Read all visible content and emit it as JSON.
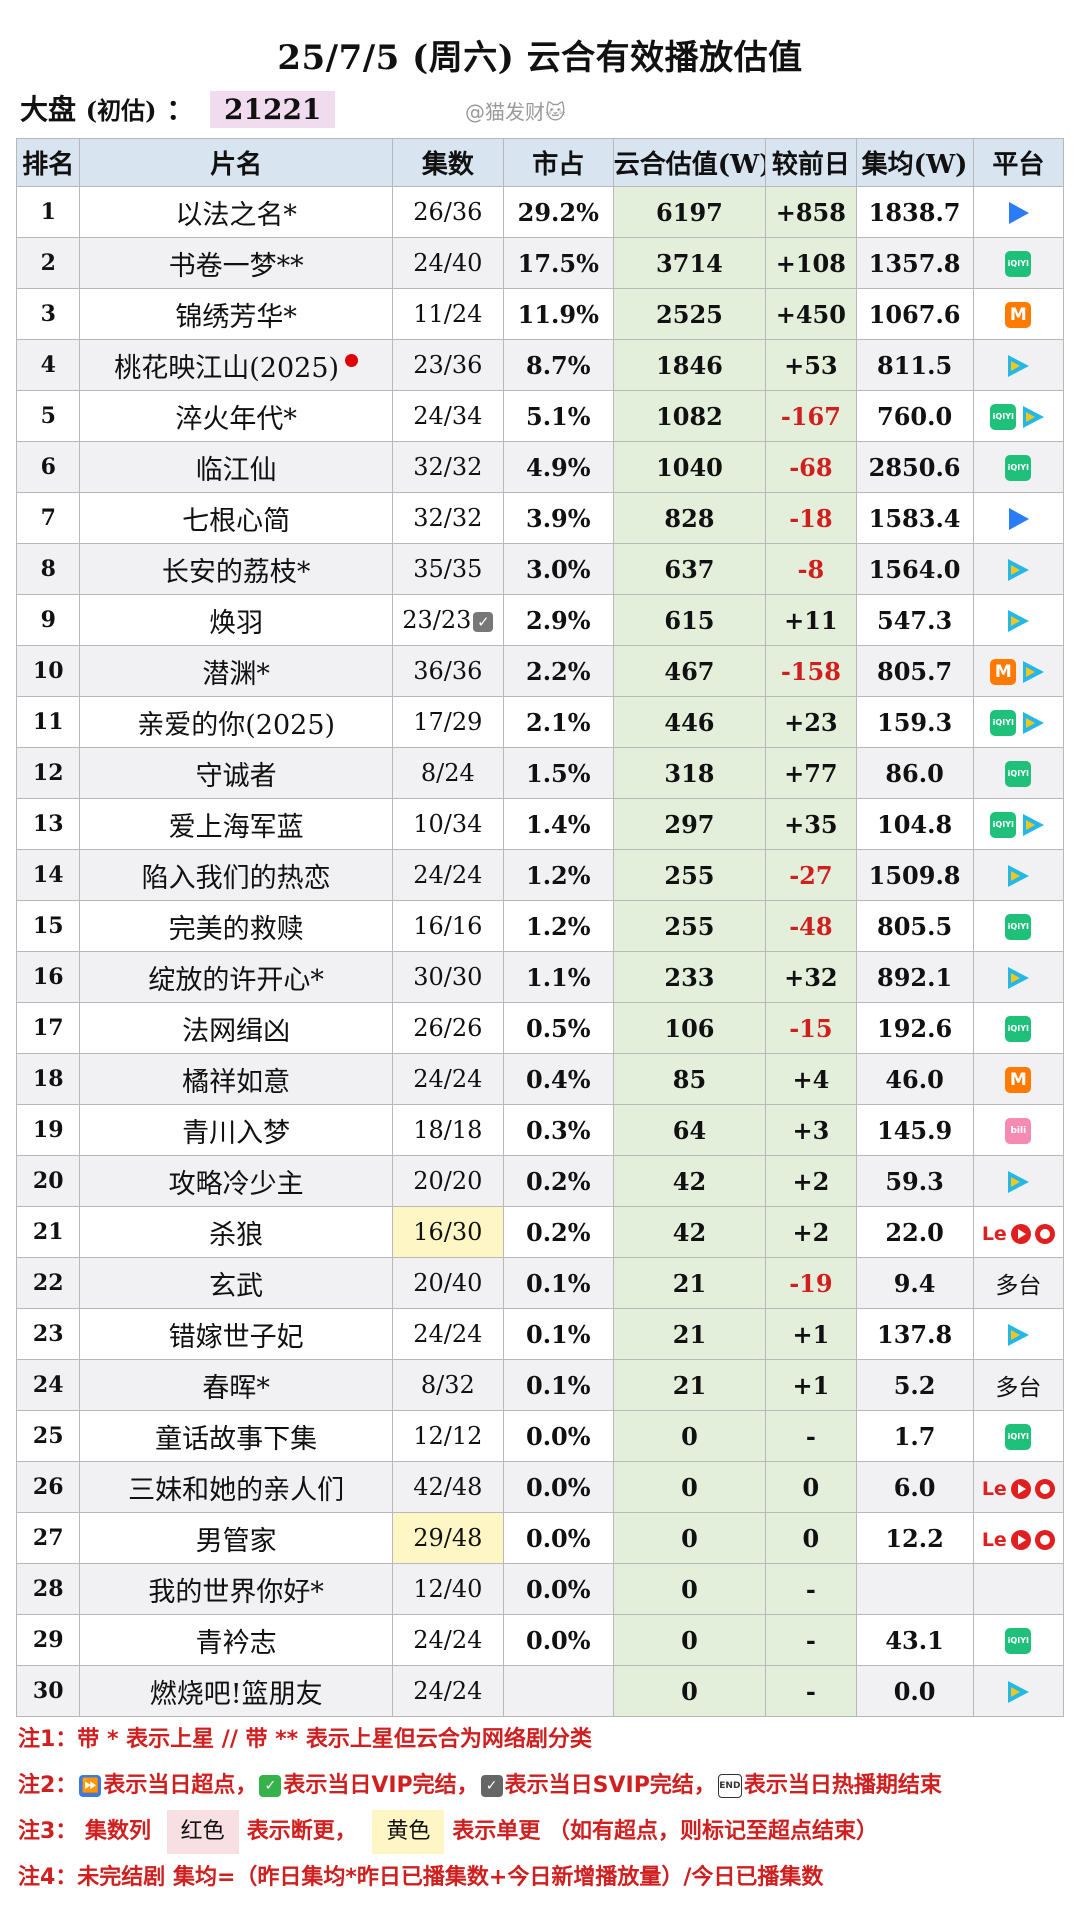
{
  "title": "25/7/5 (周六) 云合有效播放估值",
  "dapan": {
    "label": "大盘",
    "sub": "(初估)",
    "colon": "：",
    "value": "21221"
  },
  "watermark": "@猫发财🐱",
  "headers": [
    "排名",
    "片名",
    "集数",
    "市占",
    "云合估值(W)",
    "较前日",
    "集均(W)",
    "平台"
  ],
  "rows": [
    {
      "rank": "1",
      "name": "以法之名*",
      "ep": "26/36",
      "share": "29.2%",
      "est": "6197",
      "diff": "+858",
      "avg": "1838.7",
      "platforms": [
        "youku"
      ]
    },
    {
      "rank": "2",
      "name": "书卷一梦**",
      "ep": "24/40",
      "share": "17.5%",
      "est": "3714",
      "diff": "+108",
      "avg": "1357.8",
      "platforms": [
        "iqiyi"
      ]
    },
    {
      "rank": "3",
      "name": "锦绣芳华*",
      "ep": "11/24",
      "share": "11.9%",
      "est": "2525",
      "diff": "+450",
      "avg": "1067.6",
      "platforms": [
        "mango"
      ]
    },
    {
      "rank": "4",
      "name": "桃花映江山(2025)",
      "ep": "23/36",
      "share": "8.7%",
      "est": "1846",
      "diff": "+53",
      "avg": "811.5",
      "platforms": [
        "tencent"
      ],
      "dot": true
    },
    {
      "rank": "5",
      "name": "淬火年代*",
      "ep": "24/34",
      "share": "5.1%",
      "est": "1082",
      "diff": "-167",
      "avg": "760.0",
      "platforms": [
        "iqiyi",
        "tencent"
      ]
    },
    {
      "rank": "6",
      "name": "临江仙",
      "ep": "32/32",
      "share": "4.9%",
      "est": "1040",
      "diff": "-68",
      "avg": "2850.6",
      "platforms": [
        "iqiyi"
      ]
    },
    {
      "rank": "7",
      "name": "七根心简",
      "ep": "32/32",
      "share": "3.9%",
      "est": "828",
      "diff": "-18",
      "avg": "1583.4",
      "platforms": [
        "youku"
      ]
    },
    {
      "rank": "8",
      "name": "长安的荔枝*",
      "ep": "35/35",
      "share": "3.0%",
      "est": "637",
      "diff": "-8",
      "avg": "1564.0",
      "platforms": [
        "tencent"
      ]
    },
    {
      "rank": "9",
      "name": "焕羽",
      "ep": "23/23",
      "share": "2.9%",
      "est": "615",
      "diff": "+11",
      "avg": "547.3",
      "platforms": [
        "tencent"
      ],
      "check": true
    },
    {
      "rank": "10",
      "name": "潜渊*",
      "ep": "36/36",
      "share": "2.2%",
      "est": "467",
      "diff": "-158",
      "avg": "805.7",
      "platforms": [
        "mango",
        "tencent"
      ]
    },
    {
      "rank": "11",
      "name": "亲爱的你(2025)",
      "ep": "17/29",
      "share": "2.1%",
      "est": "446",
      "diff": "+23",
      "avg": "159.3",
      "platforms": [
        "iqiyi",
        "tencent"
      ]
    },
    {
      "rank": "12",
      "name": "守诚者",
      "ep": "8/24",
      "share": "1.5%",
      "est": "318",
      "diff": "+77",
      "avg": "86.0",
      "platforms": [
        "iqiyi"
      ]
    },
    {
      "rank": "13",
      "name": "爱上海军蓝",
      "ep": "10/34",
      "share": "1.4%",
      "est": "297",
      "diff": "+35",
      "avg": "104.8",
      "platforms": [
        "iqiyi",
        "tencent"
      ]
    },
    {
      "rank": "14",
      "name": "陷入我们的热恋",
      "ep": "24/24",
      "share": "1.2%",
      "est": "255",
      "diff": "-27",
      "avg": "1509.8",
      "platforms": [
        "tencent"
      ]
    },
    {
      "rank": "15",
      "name": "完美的救赎",
      "ep": "16/16",
      "share": "1.2%",
      "est": "255",
      "diff": "-48",
      "avg": "805.5",
      "platforms": [
        "iqiyi"
      ]
    },
    {
      "rank": "16",
      "name": "绽放的许开心*",
      "ep": "30/30",
      "share": "1.1%",
      "est": "233",
      "diff": "+32",
      "avg": "892.1",
      "platforms": [
        "tencent"
      ]
    },
    {
      "rank": "17",
      "name": "法网缉凶",
      "ep": "26/26",
      "share": "0.5%",
      "est": "106",
      "diff": "-15",
      "avg": "192.6",
      "platforms": [
        "iqiyi"
      ]
    },
    {
      "rank": "18",
      "name": "橘祥如意",
      "ep": "24/24",
      "share": "0.4%",
      "est": "85",
      "diff": "+4",
      "avg": "46.0",
      "platforms": [
        "mango"
      ]
    },
    {
      "rank": "19",
      "name": "青川入梦",
      "ep": "18/18",
      "share": "0.3%",
      "est": "64",
      "diff": "+3",
      "avg": "145.9",
      "platforms": [
        "bili"
      ]
    },
    {
      "rank": "20",
      "name": "攻略冷少主",
      "ep": "20/20",
      "share": "0.2%",
      "est": "42",
      "diff": "+2",
      "avg": "59.3",
      "platforms": [
        "tencent"
      ]
    },
    {
      "rank": "21",
      "name": "杀狼",
      "ep": "16/30",
      "share": "0.2%",
      "est": "42",
      "diff": "+2",
      "avg": "22.0",
      "platforms": [
        "le",
        "red",
        "red2"
      ],
      "ep_yellow": true
    },
    {
      "rank": "22",
      "name": "玄武",
      "ep": "20/40",
      "share": "0.1%",
      "est": "21",
      "diff": "-19",
      "avg": "9.4",
      "platforms": [],
      "platform_text": "多台"
    },
    {
      "rank": "23",
      "name": "错嫁世子妃",
      "ep": "24/24",
      "share": "0.1%",
      "est": "21",
      "diff": "+1",
      "avg": "137.8",
      "platforms": [
        "tencent"
      ]
    },
    {
      "rank": "24",
      "name": "春晖*",
      "ep": "8/32",
      "share": "0.1%",
      "est": "21",
      "diff": "+1",
      "avg": "5.2",
      "platforms": [],
      "platform_text": "多台"
    },
    {
      "rank": "25",
      "name": "童话故事下集",
      "ep": "12/12",
      "share": "0.0%",
      "est": "0",
      "diff": "-",
      "avg": "1.7",
      "platforms": [
        "iqiyi"
      ]
    },
    {
      "rank": "26",
      "name": "三妹和她的亲人们",
      "ep": "42/48",
      "share": "0.0%",
      "est": "0",
      "diff": "0",
      "avg": "6.0",
      "platforms": [
        "le",
        "red",
        "red2"
      ]
    },
    {
      "rank": "27",
      "name": "男管家",
      "ep": "29/48",
      "share": "0.0%",
      "est": "0",
      "diff": "0",
      "avg": "12.2",
      "platforms": [
        "le",
        "red",
        "red2"
      ],
      "ep_yellow": true
    },
    {
      "rank": "28",
      "name": "我的世界你好*",
      "ep": "12/40",
      "share": "0.0%",
      "est": "0",
      "diff": "-",
      "avg": "",
      "platforms": []
    },
    {
      "rank": "29",
      "name": "青衿志",
      "ep": "24/24",
      "share": "0.0%",
      "est": "0",
      "diff": "-",
      "avg": "43.1",
      "platforms": [
        "iqiyi"
      ]
    },
    {
      "rank": "30",
      "name": "燃烧吧!篮朋友",
      "ep": "24/24",
      "share": "",
      "est": "0",
      "diff": "-",
      "avg": "0.0",
      "platforms": [
        "tencent"
      ]
    }
  ],
  "notes": {
    "n1": "注1：带 * 表示上星 // 带 ** 表示上星但云合为网络剧分类",
    "n2": {
      "lead": "注2：",
      "a": "表示当日超点，",
      "b": "表示当日VIP完结，",
      "c": "表示当日SVIP完结，",
      "d": "表示当日热播期结束"
    },
    "n3": {
      "lead": "注3：",
      "a": "集数列",
      "red": "红色",
      "b": "表示断更，",
      "yellow": "黄色",
      "c": "表示单更 （如有超点，则标记至超点结束）"
    },
    "n4": "注4：未完结剧 集均=（昨日集均*昨日已播集数+今日新增播放量）/今日已播集数"
  },
  "colors": {
    "header_bg": "#d9e4f1",
    "est_bg": "#e3efdb",
    "negative": "#d01f1f",
    "alt_row": "#f1f1f3"
  }
}
